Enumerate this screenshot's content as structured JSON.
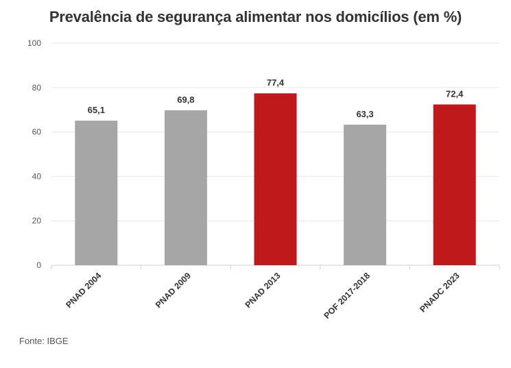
{
  "chart_data": {
    "type": "bar",
    "title": "Prevalência de segurança alimentar nos domicílios (em %)",
    "categories": [
      "PNAD 2004",
      "PNAD 2009",
      "PNAD 2013",
      "POF 2017-2018",
      "PNADC 2023"
    ],
    "values": [
      65.1,
      69.8,
      77.4,
      63.3,
      72.4
    ],
    "data_labels": [
      "65,1",
      "69,8",
      "77,4",
      "63,3",
      "72,4"
    ],
    "bar_colors": [
      "#a6a6a6",
      "#a6a6a6",
      "#c0191b",
      "#a6a6a6",
      "#c0191b"
    ],
    "ylim": [
      0,
      100
    ],
    "yticks": [
      0,
      20,
      40,
      60,
      80,
      100
    ],
    "xlabel": "",
    "ylabel": "",
    "grid": true
  },
  "source": "Fonte: IBGE"
}
